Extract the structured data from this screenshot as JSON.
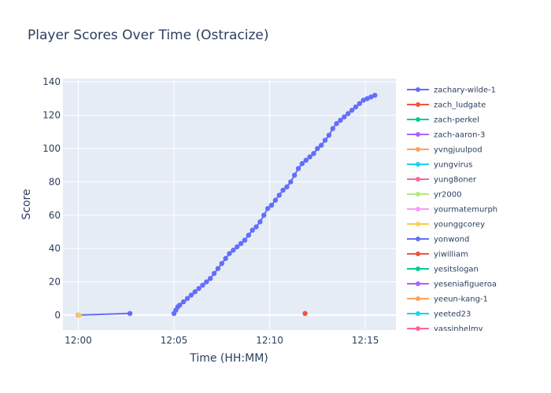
{
  "chart_data": {
    "type": "line",
    "title": "Player Scores Over Time (Ostracize)",
    "xlabel": "Time (HH:MM)",
    "ylabel": "Score",
    "x_ticks": [
      "12:00",
      "12:05",
      "12:10",
      "12:15"
    ],
    "x_tick_minutes": [
      0,
      5,
      10,
      15
    ],
    "xlim_minutes": [
      -0.8,
      16.6
    ],
    "ylim": [
      -9,
      142
    ],
    "y_ticks": [
      0,
      20,
      40,
      60,
      80,
      100,
      120,
      140
    ],
    "grid": true,
    "legend_position": "right",
    "series": [
      {
        "name": "zachary-wilde-1",
        "color": "#636efa",
        "x_minutes": [
          0.0,
          2.7
        ],
        "y": [
          0,
          1
        ],
        "marker_only": false
      },
      {
        "name": "zachary-wilde-1",
        "color": "#636efa",
        "x_minutes": [
          5.0,
          5.1,
          5.2,
          5.3,
          5.5,
          5.7,
          5.9,
          6.1,
          6.3,
          6.5,
          6.7,
          6.9,
          7.1,
          7.3,
          7.5,
          7.7,
          7.9,
          8.1,
          8.3,
          8.5,
          8.7,
          8.9,
          9.1,
          9.3,
          9.5,
          9.7,
          9.9,
          10.1,
          10.3,
          10.5,
          10.7,
          10.9,
          11.1,
          11.3,
          11.5,
          11.7,
          11.9,
          12.1,
          12.3,
          12.5,
          12.7,
          12.9,
          13.1,
          13.3,
          13.5,
          13.7,
          13.9,
          14.1,
          14.3,
          14.5,
          14.7,
          14.9,
          15.1,
          15.3,
          15.5
        ],
        "y": [
          1,
          3,
          5,
          6,
          8,
          10,
          12,
          14,
          16,
          18,
          20,
          22,
          25,
          28,
          31,
          34,
          37,
          39,
          41,
          43,
          45,
          48,
          51,
          53,
          56,
          60,
          64,
          66,
          69,
          72,
          75,
          77,
          80,
          84,
          88,
          91,
          93,
          95,
          97,
          100,
          102,
          105,
          108,
          112,
          115,
          117,
          119,
          121,
          123,
          125,
          127,
          129,
          130,
          131,
          132
        ],
        "marker_only": false
      },
      {
        "name": "zach_ludgate",
        "color": "#ef553b",
        "x_minutes": [
          11.85
        ],
        "y": [
          1
        ],
        "marker_only": true
      },
      {
        "name": "yvngjuulpod",
        "color": "#ffa15a",
        "x_minutes": [
          0.0
        ],
        "y": [
          0
        ],
        "marker_only": true
      },
      {
        "name": "younggcorey",
        "color": "#fecb52",
        "x_minutes": [
          0.05
        ],
        "y": [
          0
        ],
        "marker_only": true
      }
    ],
    "legend": [
      {
        "name": "zachary-wilde-1",
        "color": "#636efa"
      },
      {
        "name": "zach_ludgate",
        "color": "#ef553b"
      },
      {
        "name": "zach-perkel",
        "color": "#00cc96"
      },
      {
        "name": "zach-aaron-3",
        "color": "#ab63fa"
      },
      {
        "name": "yvngjuulpod",
        "color": "#ffa15a"
      },
      {
        "name": "yungvirus",
        "color": "#19d3f3"
      },
      {
        "name": "yung8oner",
        "color": "#ff6692"
      },
      {
        "name": "yr2000",
        "color": "#b6e880"
      },
      {
        "name": "yourmatemurph",
        "color": "#ff97ff"
      },
      {
        "name": "younggcorey",
        "color": "#fecb52"
      },
      {
        "name": "yonwond",
        "color": "#636efa"
      },
      {
        "name": "yiwilliam",
        "color": "#ef553b"
      },
      {
        "name": "yesitslogan",
        "color": "#00cc96"
      },
      {
        "name": "yeseniafigueroa",
        "color": "#ab63fa"
      },
      {
        "name": "yeeun-kang-1",
        "color": "#ffa15a"
      },
      {
        "name": "yeeted23",
        "color": "#19d3f3"
      },
      {
        "name": "yassinhelmy",
        "color": "#ff6692"
      }
    ]
  }
}
